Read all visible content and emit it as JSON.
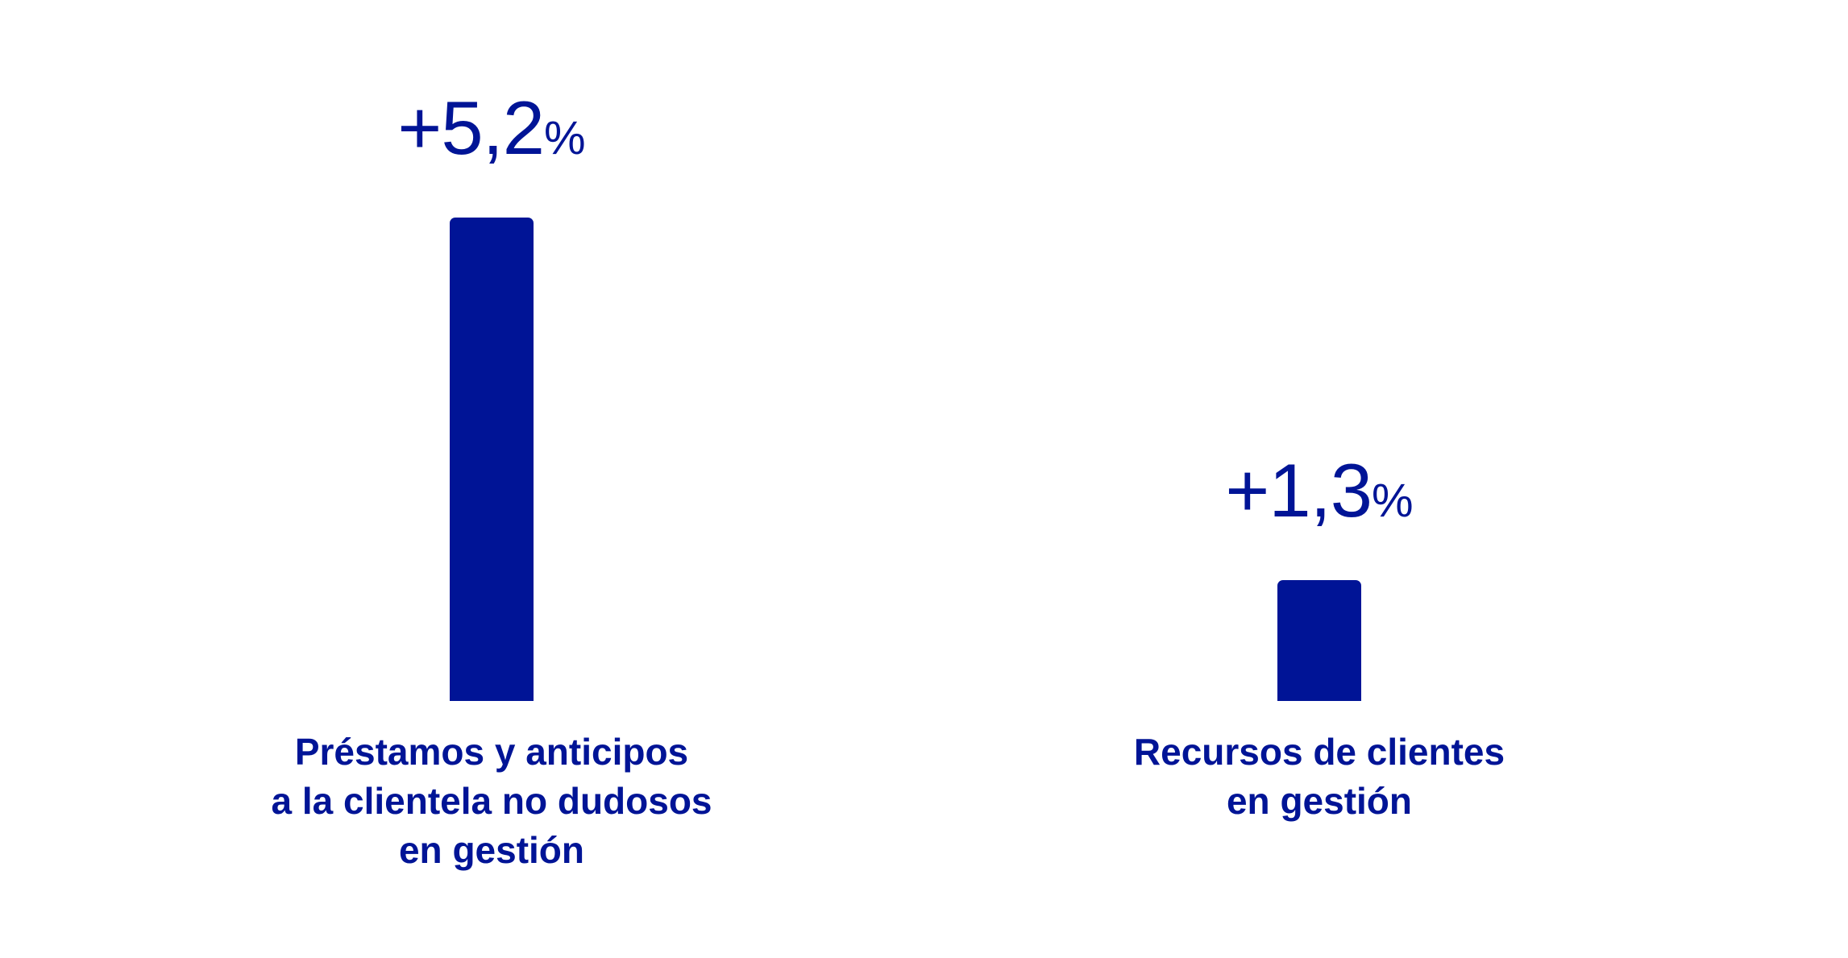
{
  "colors": {
    "bar": "#001496",
    "text": "#001496"
  },
  "chart_data": {
    "type": "bar",
    "categories": [
      [
        "Préstamos y anticipos",
        "a la clientela no dudosos",
        "en gestión"
      ],
      [
        "Recursos de clientes",
        "en gestión"
      ]
    ],
    "values": [
      5.2,
      1.3
    ],
    "value_labels": [
      {
        "number": "+5,2",
        "unit": "%"
      },
      {
        "number": "+1,3",
        "unit": "%"
      }
    ],
    "title": "",
    "xlabel": "",
    "ylabel": "",
    "ylim": [
      0,
      5.2
    ],
    "grid": false,
    "legend": "none"
  }
}
